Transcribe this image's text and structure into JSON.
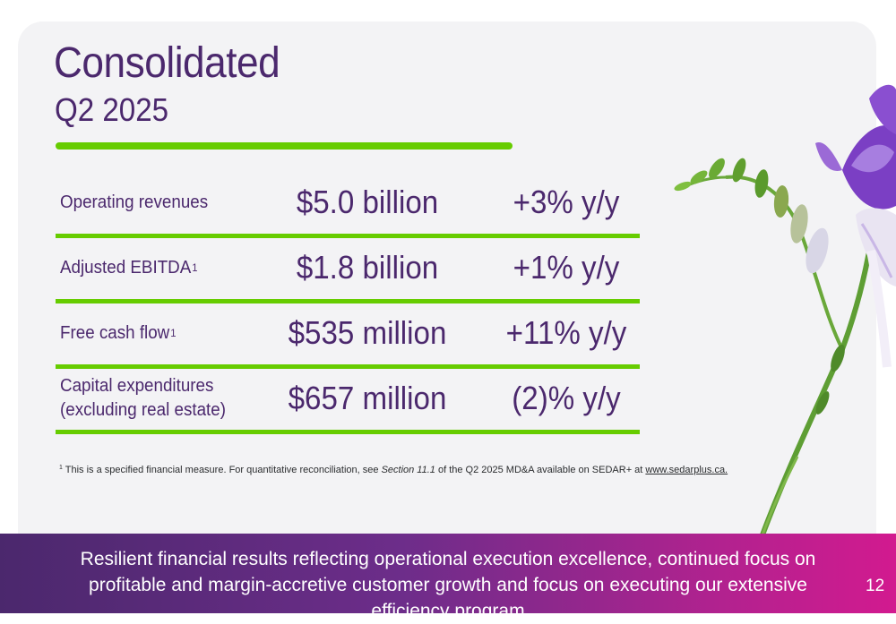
{
  "header": {
    "title": "Consolidated",
    "subtitle": "Q2 2025"
  },
  "metrics": [
    {
      "label": "Operating revenues",
      "footnote_mark": "",
      "value": "$5.0 billion",
      "change": "+3% y/y"
    },
    {
      "label": "Adjusted EBITDA",
      "footnote_mark": "1",
      "value": "$1.8 billion",
      "change": "+1% y/y"
    },
    {
      "label": "Free cash flow",
      "footnote_mark": "1",
      "value": "$535 million",
      "change": "+11% y/y"
    },
    {
      "label": "Capital expenditures\n(excluding real estate)",
      "footnote_mark": "",
      "value": "$657 million",
      "change": "(2)% y/y"
    }
  ],
  "footnote": {
    "mark": "1",
    "text_before": " This is a specified financial measure. For quantitative reconciliation, see ",
    "section": "Section 11.1",
    "text_after": " of the Q2 2025 MD&A available on SEDAR+ at ",
    "link": "www.sedarplus.ca."
  },
  "banner": {
    "text": "Resilient financial results reflecting operational execution excellence, continued focus on profitable and margin-accretive customer growth and focus on executing our extensive efficiency program",
    "page_number": "12"
  },
  "colors": {
    "primary_purple": "#4b286d",
    "accent_green": "#66cc00",
    "banner_magenta": "#d21a8f",
    "card_background": "#f3f3f5"
  }
}
